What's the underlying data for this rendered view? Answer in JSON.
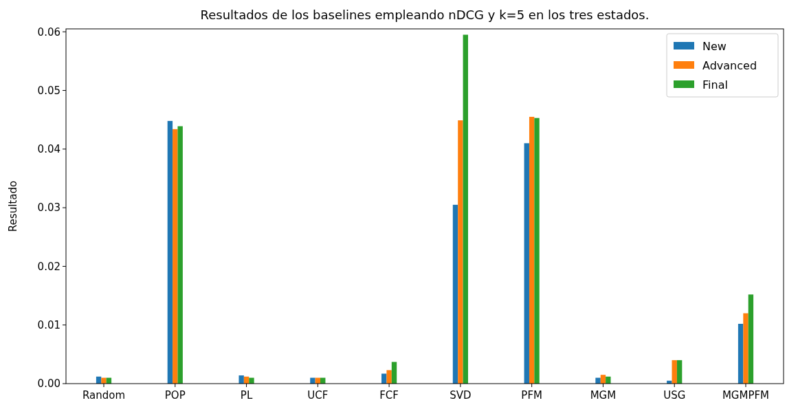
{
  "chart_data": {
    "type": "bar",
    "title": "Resultados de los baselines empleando nDCG y k=5 en los tres estados.",
    "ylabel": "Resultado",
    "categories": [
      "Random",
      "POP",
      "PL",
      "UCF",
      "FCF",
      "SVD",
      "PFM",
      "MGM",
      "USG",
      "MGMPFM"
    ],
    "series": [
      {
        "name": "New",
        "color": "#1f77b4",
        "values": [
          0.0012,
          0.0448,
          0.0014,
          0.001,
          0.0017,
          0.0305,
          0.041,
          0.001,
          0.0005,
          0.0102
        ]
      },
      {
        "name": "Advanced",
        "color": "#ff7f0e",
        "values": [
          0.001,
          0.0434,
          0.0012,
          0.001,
          0.0023,
          0.0449,
          0.0455,
          0.0015,
          0.004,
          0.012
        ]
      },
      {
        "name": "Final",
        "color": "#2ca02c",
        "values": [
          0.001,
          0.0439,
          0.001,
          0.001,
          0.0037,
          0.0595,
          0.0453,
          0.0012,
          0.004,
          0.0152
        ]
      }
    ],
    "ylim": [
      0,
      0.0605
    ],
    "yticks": [
      {
        "value": 0,
        "label": "0.00"
      },
      {
        "value": 0.01,
        "label": "0.01"
      },
      {
        "value": 0.02,
        "label": "0.02"
      },
      {
        "value": 0.03,
        "label": "0.03"
      },
      {
        "value": 0.04,
        "label": "0.04"
      },
      {
        "value": 0.05,
        "label": "0.05"
      },
      {
        "value": 0.06,
        "label": "0.06"
      }
    ],
    "grid": false,
    "legend": "top right"
  }
}
